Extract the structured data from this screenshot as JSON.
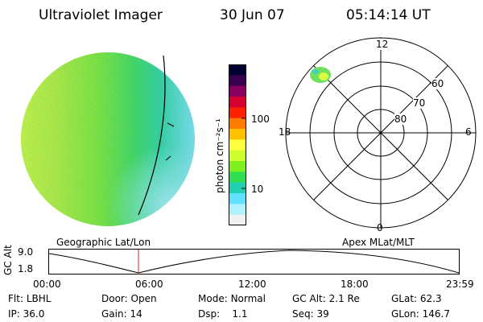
{
  "header": {
    "title": "Ultraviolet Imager",
    "date": "30 Jun 07",
    "time": "05:14:14 UT"
  },
  "colorbar": {
    "unit_label": "photon cm⁻²s⁻¹",
    "ticks": [
      "100",
      "10"
    ],
    "colors": [
      "#000033",
      "#3a0050",
      "#8a0060",
      "#d40030",
      "#ff2000",
      "#ff7a00",
      "#ffc000",
      "#ffff40",
      "#d0ff30",
      "#80f020",
      "#30e050",
      "#20d0b0",
      "#60e0ff",
      "#b0f0ff",
      "#f0f0f0"
    ]
  },
  "polar": {
    "mlt_labels": {
      "top": "12",
      "left": "18",
      "right": "6",
      "bottom": "0"
    },
    "lat_labels": [
      "60",
      "70",
      "80"
    ]
  },
  "timeline": {
    "ylabel": "GC Alt",
    "y_ticks": [
      "9.0",
      "1.8"
    ],
    "left_title": "Geographic Lat/Lon",
    "right_title": "Apex MLat/MLT",
    "x_ticks": [
      "00:00",
      "06:00",
      "12:00",
      "18:00",
      "23:59"
    ],
    "marker_fraction": 0.218
  },
  "info": {
    "row1": [
      {
        "k": "Flt:",
        "v": "LBHL"
      },
      {
        "k": "Door:",
        "v": "Open"
      },
      {
        "k": "Mode:",
        "v": "Normal"
      },
      {
        "k": "GC Alt:",
        "v": "2.1 Re"
      },
      {
        "k": "GLat:",
        "v": "62.3"
      }
    ],
    "row2": [
      {
        "k": "IP:",
        "v": "36.0"
      },
      {
        "k": "Gain:",
        "v": "14"
      },
      {
        "k": "Dsp:",
        "v": "1.1"
      },
      {
        "k": "Seq:",
        "v": "39"
      },
      {
        "k": "GLon:",
        "v": "146.7"
      }
    ]
  }
}
